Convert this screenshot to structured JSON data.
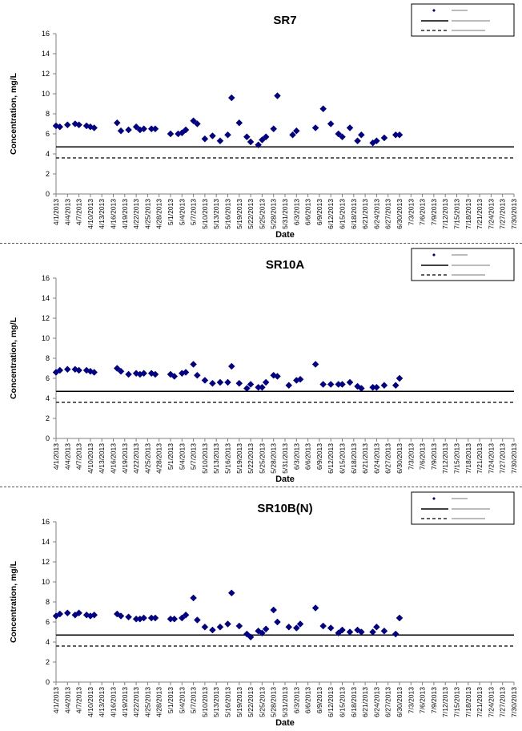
{
  "colors": {
    "marker": "#00008B",
    "line": "#000000",
    "axis": "#808080"
  },
  "chart_data": [
    {
      "type": "scatter",
      "title": "SR7",
      "xlabel": "Date",
      "ylabel": "Concentration, mg/L",
      "ylim": [
        0,
        16
      ],
      "yticks": [
        "0",
        "2",
        "4",
        "6",
        "8",
        "10",
        "12",
        "14",
        "16"
      ],
      "x_tick_labels": [
        "4/1/2013",
        "4/4/2013",
        "4/7/2013",
        "4/10/2013",
        "4/13/2013",
        "4/16/2013",
        "4/19/2013",
        "4/22/2013",
        "4/25/2013",
        "4/28/2013",
        "5/1/2013",
        "5/4/2013",
        "5/7/2013",
        "5/10/2013",
        "5/13/2013",
        "5/16/2013",
        "5/19/2013",
        "5/22/2013",
        "5/25/2013",
        "5/28/2013",
        "5/31/2013",
        "6/3/2013",
        "6/6/2013",
        "6/9/2013",
        "6/12/2013",
        "6/15/2013",
        "6/18/2013",
        "6/21/2013",
        "6/24/2013",
        "6/27/2013",
        "6/30/2013",
        "7/3/2013",
        "7/6/2013",
        "7/9/2013",
        "7/12/2013",
        "7/15/2013",
        "7/18/2013",
        "7/21/2013",
        "7/24/2013",
        "7/27/2013",
        "7/30/2013"
      ],
      "legend_position": "top-right",
      "reference_lines": {
        "solid": 4.7,
        "dashed": 3.6
      },
      "points": [
        [
          "4/1/2013",
          6.8
        ],
        [
          "4/2/2013",
          6.7
        ],
        [
          "4/4/2013",
          6.9
        ],
        [
          "4/6/2013",
          7.0
        ],
        [
          "4/7/2013",
          6.9
        ],
        [
          "4/9/2013",
          6.8
        ],
        [
          "4/10/2013",
          6.7
        ],
        [
          "4/11/2013",
          6.6
        ],
        [
          "4/17/2013",
          7.1
        ],
        [
          "4/18/2013",
          6.3
        ],
        [
          "4/20/2013",
          6.4
        ],
        [
          "4/22/2013",
          6.7
        ],
        [
          "4/23/2013",
          6.4
        ],
        [
          "4/24/2013",
          6.5
        ],
        [
          "4/26/2013",
          6.5
        ],
        [
          "4/27/2013",
          6.5
        ],
        [
          "5/1/2013",
          6.0
        ],
        [
          "5/3/2013",
          6.0
        ],
        [
          "5/4/2013",
          6.1
        ],
        [
          "5/5/2013",
          6.4
        ],
        [
          "5/7/2013",
          7.3
        ],
        [
          "5/8/2013",
          7.0
        ],
        [
          "5/10/2013",
          5.5
        ],
        [
          "5/12/2013",
          5.8
        ],
        [
          "5/14/2013",
          5.3
        ],
        [
          "5/16/2013",
          5.9
        ],
        [
          "5/17/2013",
          9.6
        ],
        [
          "5/19/2013",
          7.1
        ],
        [
          "5/21/2013",
          5.7
        ],
        [
          "5/22/2013",
          5.2
        ],
        [
          "5/24/2013",
          4.9
        ],
        [
          "5/25/2013",
          5.4
        ],
        [
          "5/26/2013",
          5.7
        ],
        [
          "5/28/2013",
          6.5
        ],
        [
          "5/29/2013",
          9.8
        ],
        [
          "6/2/2013",
          5.9
        ],
        [
          "6/3/2013",
          6.3
        ],
        [
          "6/8/2013",
          6.6
        ],
        [
          "6/10/2013",
          8.5
        ],
        [
          "6/12/2013",
          7.0
        ],
        [
          "6/14/2013",
          6.0
        ],
        [
          "6/15/2013",
          5.7
        ],
        [
          "6/17/2013",
          6.6
        ],
        [
          "6/19/2013",
          5.3
        ],
        [
          "6/20/2013",
          5.9
        ],
        [
          "6/23/2013",
          5.1
        ],
        [
          "6/24/2013",
          5.3
        ],
        [
          "6/26/2013",
          5.6
        ],
        [
          "6/29/2013",
          5.9
        ],
        [
          "6/30/2013",
          5.9
        ]
      ]
    },
    {
      "type": "scatter",
      "title": "SR10A",
      "xlabel": "Date",
      "ylabel": "Concentration, mg/L",
      "ylim": [
        0,
        16
      ],
      "yticks": [
        "0",
        "2",
        "4",
        "6",
        "8",
        "10",
        "12",
        "14",
        "16"
      ],
      "x_tick_labels": [
        "4/1/2013",
        "4/4/2013",
        "4/7/2013",
        "4/10/2013",
        "4/13/2013",
        "4/16/2013",
        "4/19/2013",
        "4/22/2013",
        "4/25/2013",
        "4/28/2013",
        "5/1/2013",
        "5/4/2013",
        "5/7/2013",
        "5/10/2013",
        "5/13/2013",
        "5/16/2013",
        "5/19/2013",
        "5/22/2013",
        "5/25/2013",
        "5/28/2013",
        "5/31/2013",
        "6/3/2013",
        "6/6/2013",
        "6/9/2013",
        "6/12/2013",
        "6/15/2013",
        "6/18/2013",
        "6/21/2013",
        "6/24/2013",
        "6/27/2013",
        "6/30/2013",
        "7/3/2013",
        "7/6/2013",
        "7/9/2013",
        "7/12/2013",
        "7/15/2013",
        "7/18/2013",
        "7/21/2013",
        "7/24/2013",
        "7/27/2013",
        "7/30/2013"
      ],
      "legend_position": "top-right",
      "reference_lines": {
        "solid": 4.7,
        "dashed": 3.6
      },
      "points": [
        [
          "4/1/2013",
          6.6
        ],
        [
          "4/2/2013",
          6.8
        ],
        [
          "4/4/2013",
          6.9
        ],
        [
          "4/6/2013",
          6.9
        ],
        [
          "4/7/2013",
          6.8
        ],
        [
          "4/9/2013",
          6.8
        ],
        [
          "4/10/2013",
          6.7
        ],
        [
          "4/11/2013",
          6.6
        ],
        [
          "4/17/2013",
          7.0
        ],
        [
          "4/18/2013",
          6.7
        ],
        [
          "4/20/2013",
          6.4
        ],
        [
          "4/22/2013",
          6.5
        ],
        [
          "4/23/2013",
          6.4
        ],
        [
          "4/24/2013",
          6.5
        ],
        [
          "4/26/2013",
          6.5
        ],
        [
          "4/27/2013",
          6.4
        ],
        [
          "5/1/2013",
          6.4
        ],
        [
          "5/2/2013",
          6.2
        ],
        [
          "5/4/2013",
          6.5
        ],
        [
          "5/5/2013",
          6.6
        ],
        [
          "5/7/2013",
          7.4
        ],
        [
          "5/8/2013",
          6.3
        ],
        [
          "5/10/2013",
          5.8
        ],
        [
          "5/12/2013",
          5.5
        ],
        [
          "5/14/2013",
          5.6
        ],
        [
          "5/16/2013",
          5.6
        ],
        [
          "5/17/2013",
          7.2
        ],
        [
          "5/19/2013",
          5.5
        ],
        [
          "5/21/2013",
          5.0
        ],
        [
          "5/22/2013",
          5.4
        ],
        [
          "5/24/2013",
          5.1
        ],
        [
          "5/25/2013",
          5.1
        ],
        [
          "5/26/2013",
          5.6
        ],
        [
          "5/28/2013",
          6.3
        ],
        [
          "5/29/2013",
          6.2
        ],
        [
          "6/1/2013",
          5.3
        ],
        [
          "6/3/2013",
          5.8
        ],
        [
          "6/4/2013",
          5.9
        ],
        [
          "6/8/2013",
          7.4
        ],
        [
          "6/10/2013",
          5.4
        ],
        [
          "6/12/2013",
          5.4
        ],
        [
          "6/14/2013",
          5.4
        ],
        [
          "6/15/2013",
          5.4
        ],
        [
          "6/17/2013",
          5.6
        ],
        [
          "6/19/2013",
          5.2
        ],
        [
          "6/20/2013",
          5.0
        ],
        [
          "6/23/2013",
          5.1
        ],
        [
          "6/24/2013",
          5.1
        ],
        [
          "6/26/2013",
          5.3
        ],
        [
          "6/29/2013",
          5.3
        ],
        [
          "6/30/2013",
          6.0
        ]
      ]
    },
    {
      "type": "scatter",
      "title": "SR10B(N)",
      "xlabel": "Date",
      "ylabel": "Concentration, mg/L",
      "ylim": [
        0,
        16
      ],
      "yticks": [
        "0",
        "2",
        "4",
        "6",
        "8",
        "10",
        "12",
        "14",
        "16"
      ],
      "x_tick_labels": [
        "4/1/2013",
        "4/4/2013",
        "4/7/2013",
        "4/10/2013",
        "4/13/2013",
        "4/16/2013",
        "4/19/2013",
        "4/22/2013",
        "4/25/2013",
        "4/28/2013",
        "5/1/2013",
        "5/4/2013",
        "5/7/2013",
        "5/10/2013",
        "5/13/2013",
        "5/16/2013",
        "5/19/2013",
        "5/22/2013",
        "5/25/2013",
        "5/28/2013",
        "5/31/2013",
        "6/3/2013",
        "6/6/2013",
        "6/9/2013",
        "6/12/2013",
        "6/15/2013",
        "6/18/2013",
        "6/21/2013",
        "6/24/2013",
        "6/27/2013",
        "6/30/2013",
        "7/3/2013",
        "7/6/2013",
        "7/9/2013",
        "7/12/2013",
        "7/15/2013",
        "7/18/2013",
        "7/21/2013",
        "7/24/2013",
        "7/27/2013",
        "7/30/2013"
      ],
      "legend_position": "top-right",
      "reference_lines": {
        "solid": 4.7,
        "dashed": 3.6
      },
      "points": [
        [
          "4/1/2013",
          6.6
        ],
        [
          "4/2/2013",
          6.8
        ],
        [
          "4/4/2013",
          6.9
        ],
        [
          "4/6/2013",
          6.7
        ],
        [
          "4/7/2013",
          6.9
        ],
        [
          "4/9/2013",
          6.7
        ],
        [
          "4/10/2013",
          6.6
        ],
        [
          "4/11/2013",
          6.7
        ],
        [
          "4/17/2013",
          6.8
        ],
        [
          "4/18/2013",
          6.6
        ],
        [
          "4/20/2013",
          6.5
        ],
        [
          "4/22/2013",
          6.3
        ],
        [
          "4/23/2013",
          6.3
        ],
        [
          "4/24/2013",
          6.4
        ],
        [
          "4/26/2013",
          6.4
        ],
        [
          "4/27/2013",
          6.4
        ],
        [
          "5/1/2013",
          6.3
        ],
        [
          "5/2/2013",
          6.3
        ],
        [
          "5/4/2013",
          6.4
        ],
        [
          "5/5/2013",
          6.7
        ],
        [
          "5/7/2013",
          8.4
        ],
        [
          "5/8/2013",
          6.2
        ],
        [
          "5/10/2013",
          5.5
        ],
        [
          "5/12/2013",
          5.2
        ],
        [
          "5/14/2013",
          5.5
        ],
        [
          "5/16/2013",
          5.8
        ],
        [
          "5/17/2013",
          8.9
        ],
        [
          "5/19/2013",
          5.6
        ],
        [
          "5/21/2013",
          4.8
        ],
        [
          "5/22/2013",
          4.5
        ],
        [
          "5/24/2013",
          5.1
        ],
        [
          "5/25/2013",
          4.9
        ],
        [
          "5/26/2013",
          5.3
        ],
        [
          "5/28/2013",
          7.2
        ],
        [
          "5/29/2013",
          6.0
        ],
        [
          "6/1/2013",
          5.5
        ],
        [
          "6/3/2013",
          5.4
        ],
        [
          "6/4/2013",
          5.8
        ],
        [
          "6/8/2013",
          7.4
        ],
        [
          "6/10/2013",
          5.6
        ],
        [
          "6/12/2013",
          5.4
        ],
        [
          "6/14/2013",
          4.9
        ],
        [
          "6/15/2013",
          5.2
        ],
        [
          "6/17/2013",
          5.0
        ],
        [
          "6/19/2013",
          5.2
        ],
        [
          "6/20/2013",
          5.0
        ],
        [
          "6/23/2013",
          5.0
        ],
        [
          "6/24/2013",
          5.5
        ],
        [
          "6/26/2013",
          5.1
        ],
        [
          "6/29/2013",
          4.8
        ],
        [
          "6/30/2013",
          6.4
        ]
      ]
    }
  ]
}
